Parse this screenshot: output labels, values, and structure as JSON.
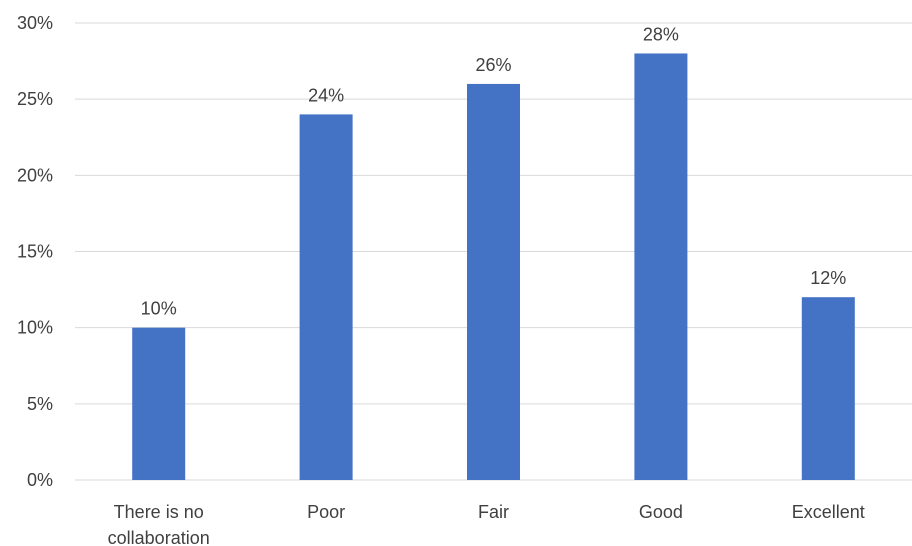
{
  "chart_data": {
    "type": "bar",
    "categories": [
      [
        "There is no",
        "collaboration"
      ],
      [
        "Poor"
      ],
      [
        "Fair"
      ],
      [
        "Good"
      ],
      [
        "Excellent"
      ]
    ],
    "values": [
      10,
      24,
      26,
      28,
      12
    ],
    "data_labels": [
      "10%",
      "24%",
      "26%",
      "28%",
      "12%"
    ],
    "ylim": [
      0,
      30
    ],
    "yticks": [
      0,
      5,
      10,
      15,
      20,
      25,
      30
    ],
    "ytick_labels": [
      "0%",
      "5%",
      "10%",
      "15%",
      "20%",
      "25%",
      "30%"
    ],
    "grid": true,
    "legend": "none",
    "bar_color": "#4472C4",
    "grid_color": "#D9D9D9",
    "text_color": "#404040"
  }
}
